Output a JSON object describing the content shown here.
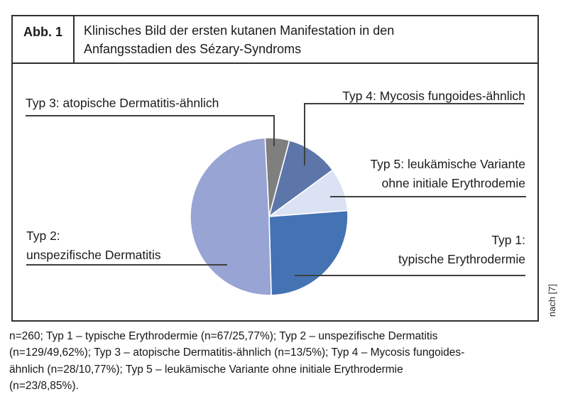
{
  "figure": {
    "label": "Abb. 1",
    "title": "Klinisches Bild der ersten kutanen Manifestation in den\nAnfangsstadien des Sézary-Syndroms",
    "source_note": "nach [7]"
  },
  "chart_data": {
    "type": "pie",
    "title": "Klinisches Bild der ersten kutanen Manifestation in den Anfangsstadien des Sézary-Syndroms",
    "n_total": 260,
    "slices": [
      {
        "label": "Typ 1: typische Erythrodermie",
        "n": 67,
        "pct": 25.77,
        "color": "#4473b4",
        "callout_text": "Typ 1:\ntypische Erythrodermie"
      },
      {
        "label": "Typ 2: unspezifische Dermatitis",
        "n": 129,
        "pct": 49.62,
        "color": "#98a4d3",
        "callout_text": "Typ 2:\nunspezifische Dermatitis"
      },
      {
        "label": "Typ 3: atopische Dermatitis-ähnlich",
        "n": 13,
        "pct": 5.0,
        "color": "#7f7f7f",
        "callout_text": "Typ 3: atopische Dermatitis-ähnlich"
      },
      {
        "label": "Typ 4: Mycosis fungoides-ähnlich",
        "n": 28,
        "pct": 10.77,
        "color": "#5c76aa",
        "callout_text": "Typ 4: Mycosis fungoides-ähnlich"
      },
      {
        "label": "Typ 5: leukämische Variante ohne initiale Erythrodemie",
        "n": 23,
        "pct": 8.85,
        "color": "#dbe2f4",
        "callout_text": "Typ 5: leukämische Variante\nohne initiale Erythrodemie"
      }
    ],
    "draw_order_clockwise_from_top": [
      2,
      3,
      4,
      0,
      1
    ],
    "start_angle_deg": -3,
    "legend_position": "callouts",
    "grid": false
  },
  "caption": "n=260; Typ 1 – typische Erythrodermie (n=67/25,77%); Typ 2 – unspezifische Dermatitis\n(n=129/49,62%); Typ 3 – atopische Dermatitis-ähnlich (n=13/5%); Typ 4 – Mycosis fungoides-\nähnlich (n=28/10,77%); Typ 5 – leukämische Variante ohne initiale Erythrodermie\n(n=23/8,85%)."
}
